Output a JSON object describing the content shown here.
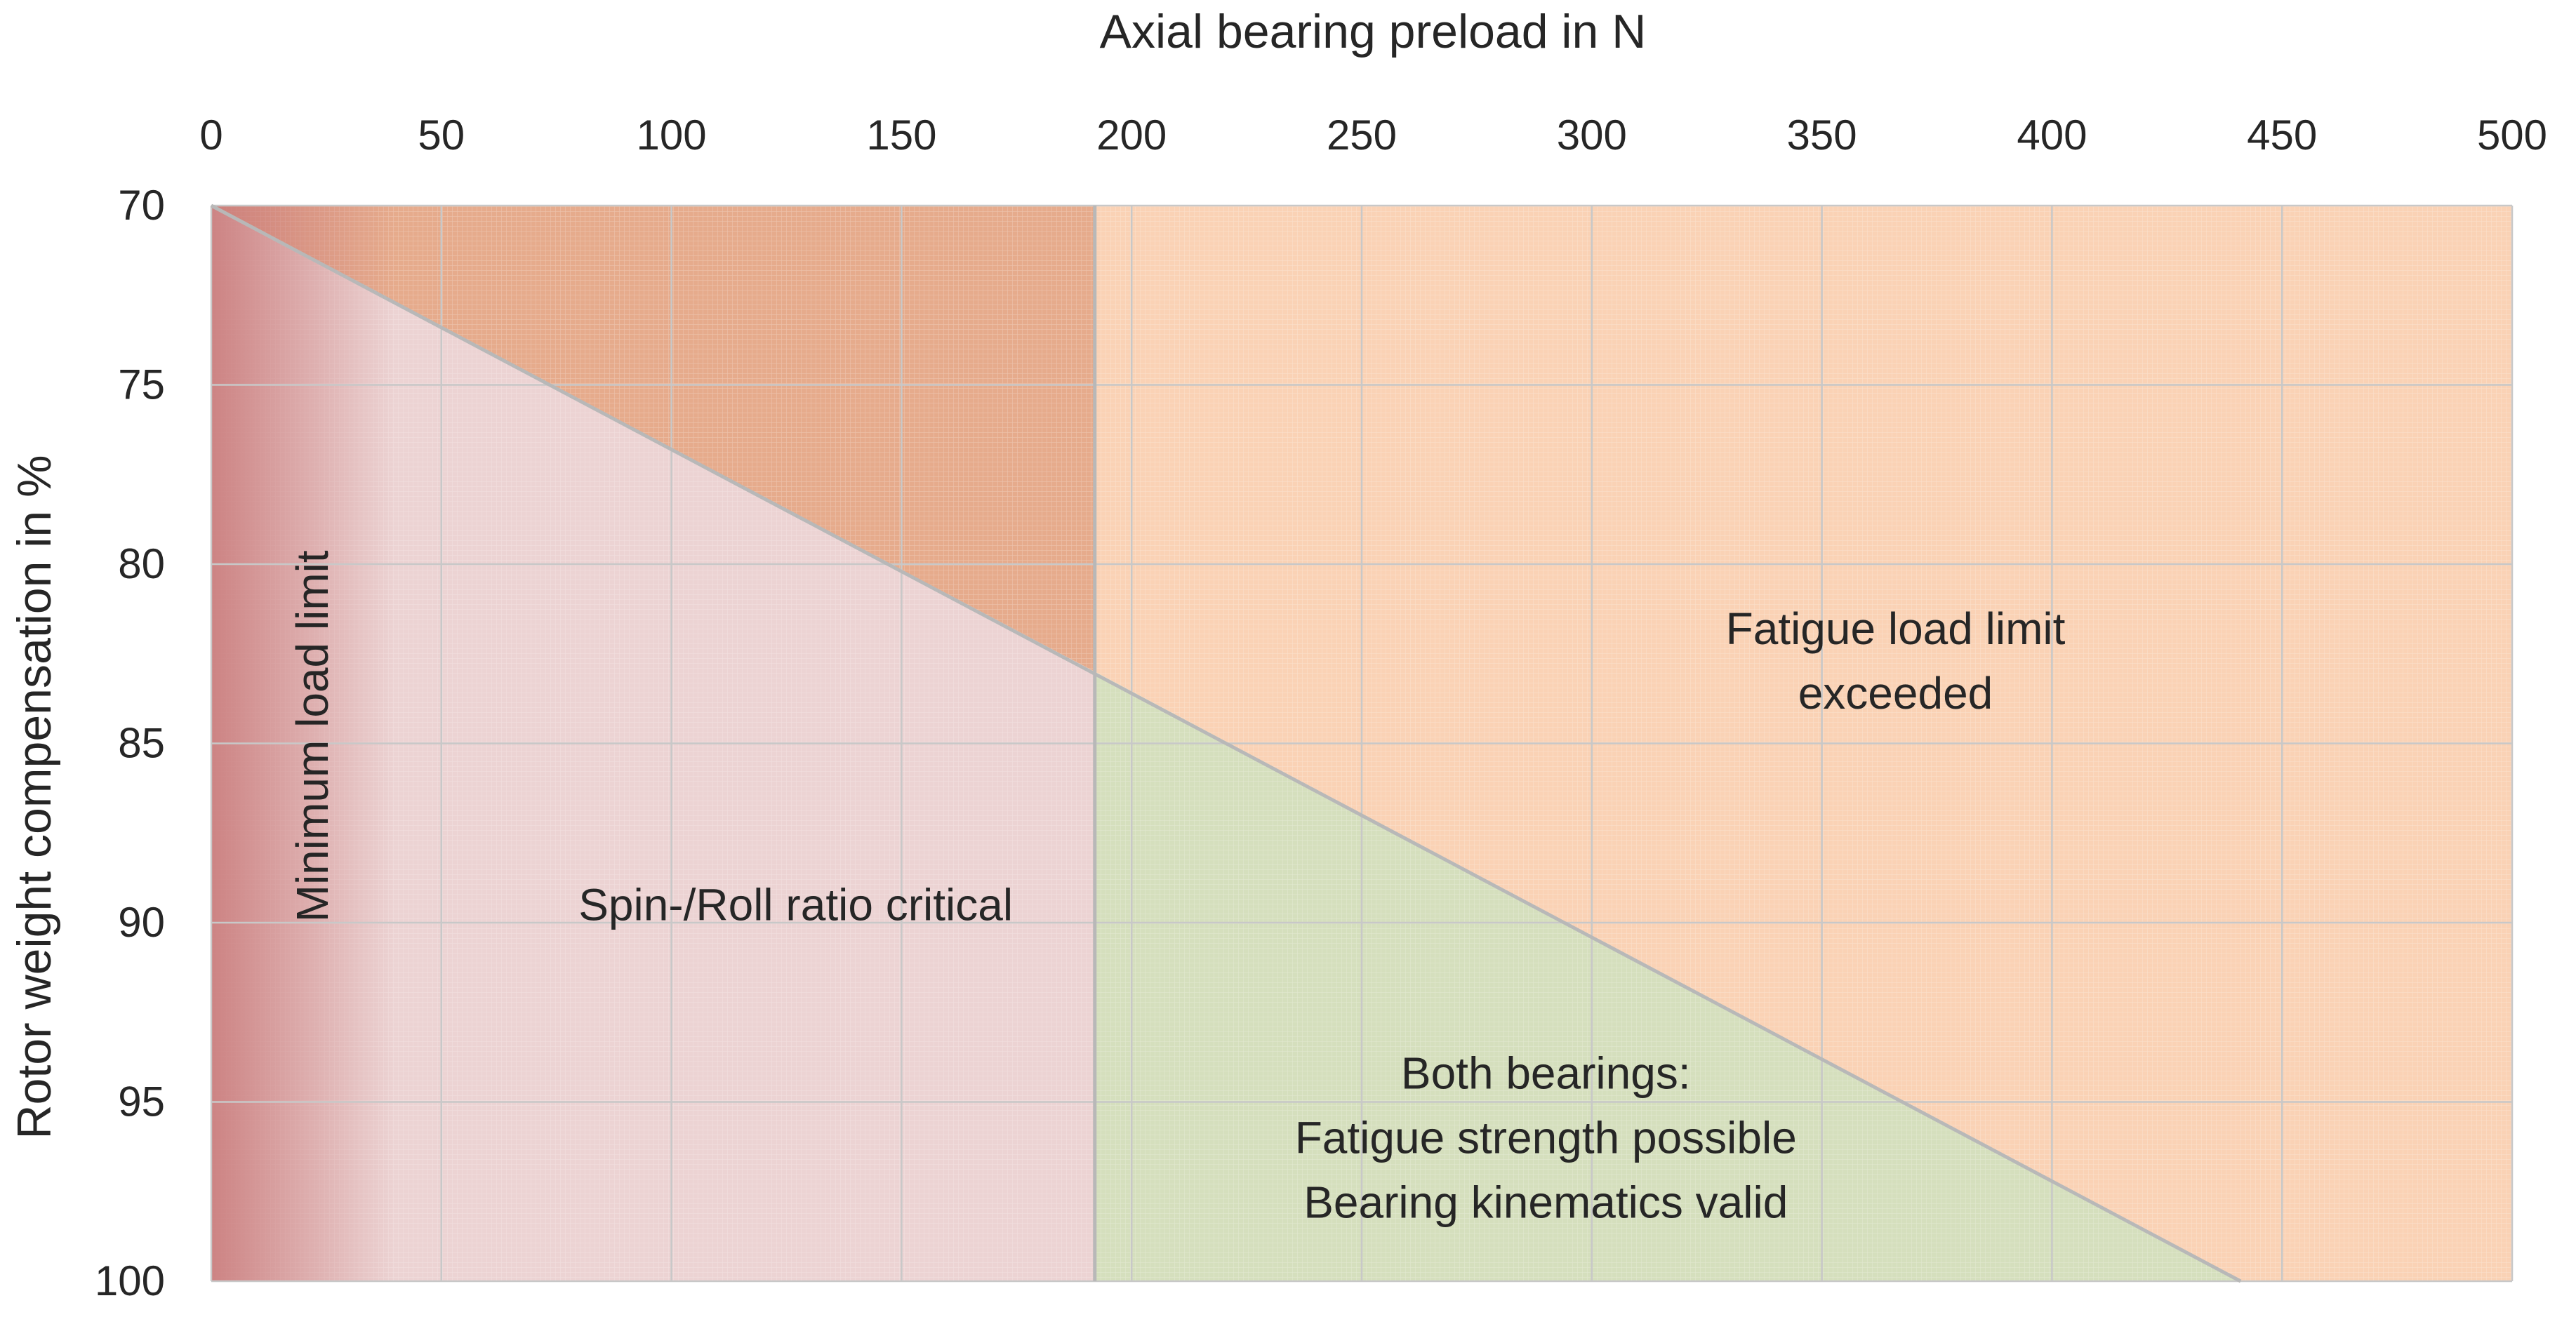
{
  "chart_data": {
    "type": "area",
    "title": "",
    "xlabel": "Axial bearing preload in N",
    "ylabel": "Rotor weight compensation in %",
    "x_axis_position": "top",
    "y_axis_inverted": true,
    "xlim": [
      0,
      500
    ],
    "ylim": [
      70,
      100
    ],
    "x_ticks": [
      0,
      50,
      100,
      150,
      200,
      250,
      300,
      350,
      400,
      450,
      500
    ],
    "y_ticks": [
      70,
      75,
      80,
      85,
      90,
      95,
      100
    ],
    "grid": true,
    "legend": "none",
    "boundaries": [
      {
        "name": "",
        "points": [
          [
            0,
            70
          ],
          [
            441,
            100
          ]
        ]
      },
      {
        "name": "",
        "points": [
          [
            192,
            70
          ],
          [
            192,
            100
          ]
        ]
      }
    ],
    "regions": [
      {
        "label": "Minimum load limit",
        "x_range": [
          0,
          40
        ],
        "y_range": [
          70,
          100
        ],
        "color": "#c97a7a",
        "orientation": "vertical"
      },
      {
        "label": "Spin-/Roll ratio critical",
        "vertices": [
          [
            0,
            70
          ],
          [
            192,
            83
          ],
          [
            192,
            100
          ],
          [
            0,
            100
          ]
        ],
        "color": "#ecd3d3"
      },
      {
        "label": "Fatigue load limit exceeded",
        "vertices": [
          [
            0,
            70
          ],
          [
            500,
            70
          ],
          [
            500,
            100
          ],
          [
            441,
            100
          ],
          [
            192,
            83
          ]
        ],
        "color": "#fad2b5"
      },
      {
        "label": "",
        "vertices": [
          [
            0,
            70
          ],
          [
            192,
            70
          ],
          [
            192,
            83
          ]
        ],
        "color": "#e6ab8c"
      },
      {
        "label": "Both bearings:\nFatigue strength possible\nBearing kinematics valid",
        "vertices": [
          [
            192,
            83
          ],
          [
            441,
            100
          ],
          [
            192,
            100
          ]
        ],
        "color": "#d5dfbd"
      }
    ],
    "annotations": [
      {
        "text": "Fatigue load limit",
        "x": 366,
        "y": 81.8
      },
      {
        "text": "exceeded",
        "x": 366,
        "y": 83.6
      },
      {
        "text": "Spin-/Roll ratio critical",
        "x": 127,
        "y": 89.5
      },
      {
        "text": "Minimum load limit",
        "x": 22,
        "y": 84.8,
        "rotated": true
      },
      {
        "text": "Both bearings:",
        "x": 290,
        "y": 94.2
      },
      {
        "text": "Fatigue strength possible",
        "x": 290,
        "y": 96.0
      },
      {
        "text": "Bearing kinematics valid",
        "x": 290,
        "y": 97.8
      }
    ],
    "colors": {
      "orange_region": "#fad2b5",
      "dark_orange_region": "#e6ab8c",
      "pink_region": "#ecd3d3",
      "green_region": "#d5dfbd",
      "red_band": "#c97a7a",
      "grid": "#c8c8c8",
      "boundary_line": "#b8b8b8",
      "text": "#262626"
    }
  }
}
